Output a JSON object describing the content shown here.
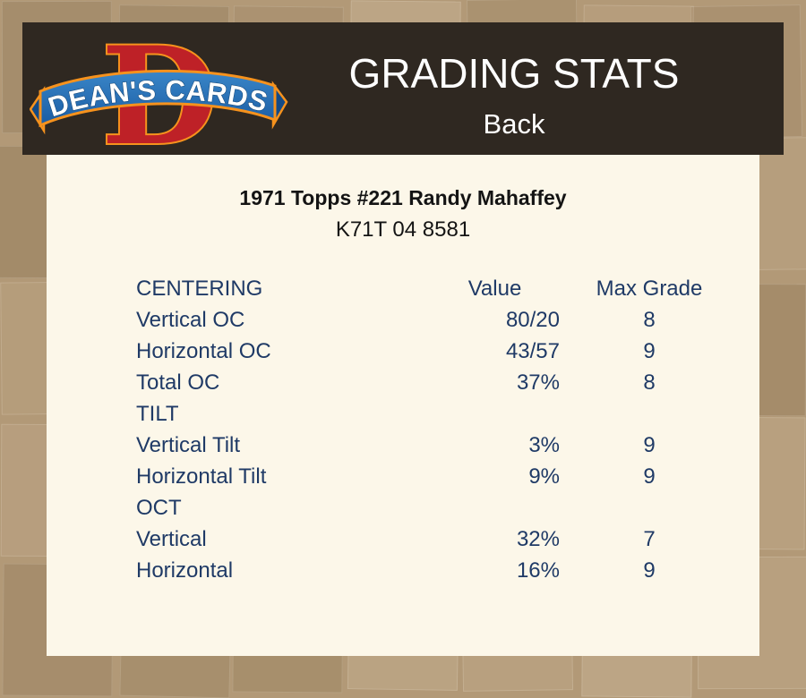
{
  "page": {
    "background_color": "#b29977",
    "panel_color": "#fcf7e9",
    "header_color": "#2f2821",
    "table_text_color": "#1f3a66"
  },
  "header": {
    "title": "GRADING STATS",
    "side_label": "Back",
    "logo": {
      "brand": "DEAN'S CARDS",
      "monogram": "D",
      "colors": {
        "d_red": "#be2127",
        "outline_orange": "#f6921d",
        "ribbon_blue": "#1f6db6",
        "ribbon_dark": "#134a86",
        "text_white": "#ffffff"
      }
    }
  },
  "card_info": {
    "title": "1971 Topps #221 Randy Mahaffey",
    "serial": "K71T 04 8581"
  },
  "stats_table": {
    "header": {
      "section": "CENTERING",
      "value": "Value",
      "grade": "Max Grade"
    },
    "rows": [
      {
        "type": "data",
        "label": "Vertical OC",
        "value": "80/20",
        "grade": "8"
      },
      {
        "type": "data",
        "label": "Horizontal OC",
        "value": "43/57",
        "grade": "9"
      },
      {
        "type": "data",
        "label": "Total OC",
        "value": "37%",
        "grade": "8"
      },
      {
        "type": "section",
        "label": "TILT"
      },
      {
        "type": "data",
        "label": "Vertical Tilt",
        "value": "3%",
        "grade": "9"
      },
      {
        "type": "data",
        "label": "Horizontal Tilt",
        "value": "9%",
        "grade": "9"
      },
      {
        "type": "section",
        "label": "OCT"
      },
      {
        "type": "data",
        "label": "Vertical",
        "value": "32%",
        "grade": "7"
      },
      {
        "type": "data",
        "label": "Horizontal",
        "value": "16%",
        "grade": "9"
      }
    ]
  }
}
